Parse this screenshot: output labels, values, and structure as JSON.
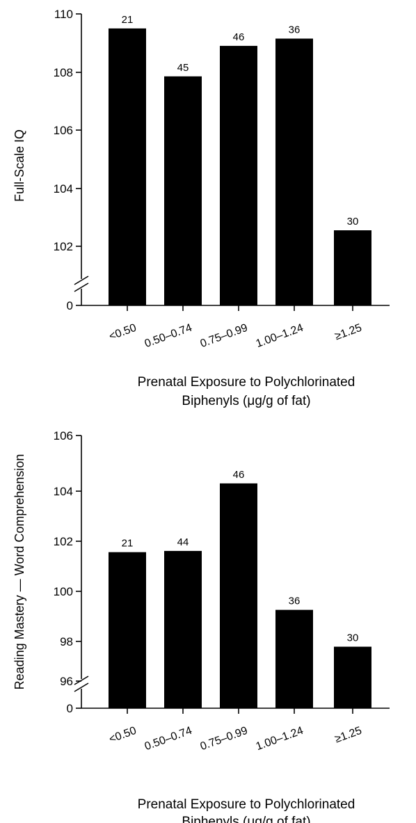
{
  "chart_data": [
    {
      "type": "bar",
      "categories": [
        "<0.50",
        "0.50–0.74",
        "0.75–0.99",
        "1.00–1.24",
        "≥1.25"
      ],
      "values": [
        109.5,
        107.85,
        108.9,
        109.15,
        102.55
      ],
      "bar_labels": [
        "21",
        "45",
        "46",
        "36",
        "30"
      ],
      "ylabel": "Full-Scale IQ",
      "xlabel_lines": [
        "Prenatal Exposure to Polychlorinated",
        "Biphenyls (μg/g of fat)"
      ],
      "yticks": [
        "0",
        "102",
        "104",
        "106",
        "108",
        "110"
      ],
      "ylim": [
        101,
        110
      ],
      "axis_break": true,
      "grid": false
    },
    {
      "type": "bar",
      "categories": [
        "<0.50",
        "0.50–0.74",
        "0.75–0.99",
        "1.00–1.24",
        "≥1.25"
      ],
      "values": [
        101.25,
        101.3,
        104.05,
        98.9,
        97.4
      ],
      "bar_labels": [
        "21",
        "44",
        "46",
        "36",
        "30"
      ],
      "ylabel": "Reading Mastery — Word Comprehension",
      "xlabel_lines": [
        "Prenatal Exposure to Polychlorinated",
        "Biphenyls (μg/g of fat)"
      ],
      "yticks": [
        "0",
        "96",
        "98",
        "100",
        "102",
        "104",
        "106"
      ],
      "ylim": [
        95,
        106
      ],
      "axis_break": true,
      "grid": false
    }
  ]
}
